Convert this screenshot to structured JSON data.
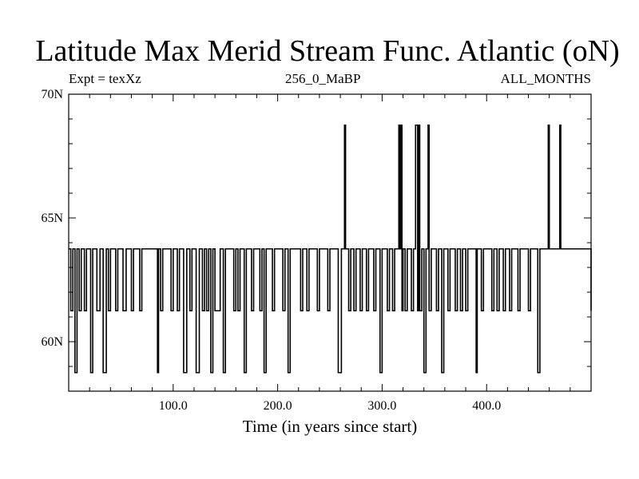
{
  "header": {
    "title": "Latitude Max Merid Stream Func. Atlantic (oN)",
    "left_label": "Expt = texXz",
    "center_label": "256_0_MaBP",
    "right_label": "ALL_MONTHS"
  },
  "chart_data": {
    "type": "line",
    "title": "Latitude Max Merid Stream Func. Atlantic (oN)",
    "xlabel": "Time (in years since start)",
    "ylabel": "",
    "xlim": [
      0,
      500
    ],
    "ylim": [
      58,
      70
    ],
    "x_ticks": [
      {
        "value": 100,
        "label": "100.0"
      },
      {
        "value": 200,
        "label": "200.0"
      },
      {
        "value": 300,
        "label": "300.0"
      },
      {
        "value": 400,
        "label": "400.0"
      }
    ],
    "y_ticks": [
      {
        "value": 60,
        "label": "60N"
      },
      {
        "value": 65,
        "label": "65N"
      },
      {
        "value": 70,
        "label": "70N"
      }
    ],
    "grid": false,
    "baseline": 63.75,
    "levels": [
      58.75,
      61.25,
      63.75,
      68.75
    ],
    "series": [
      {
        "name": "latitude",
        "color": "#000000",
        "events": [
          [
            2,
            61.25
          ],
          [
            4,
            63.75
          ],
          [
            6,
            58.75
          ],
          [
            8,
            63.75
          ],
          [
            10,
            61.25
          ],
          [
            12,
            63.75
          ],
          [
            15,
            61.25
          ],
          [
            17,
            63.75
          ],
          [
            21,
            58.75
          ],
          [
            23,
            63.75
          ],
          [
            27,
            61.25
          ],
          [
            30,
            63.75
          ],
          [
            33,
            58.75
          ],
          [
            36,
            63.75
          ],
          [
            38,
            61.25
          ],
          [
            40,
            63.75
          ],
          [
            45,
            61.25
          ],
          [
            47,
            63.75
          ],
          [
            52,
            61.25
          ],
          [
            55,
            63.75
          ],
          [
            60,
            61.25
          ],
          [
            62,
            63.75
          ],
          [
            68,
            61.25
          ],
          [
            70,
            63.75
          ],
          [
            85,
            58.75
          ],
          [
            86,
            63.75
          ],
          [
            88,
            61.25
          ],
          [
            90,
            63.75
          ],
          [
            98,
            61.25
          ],
          [
            100,
            63.75
          ],
          [
            104,
            61.25
          ],
          [
            106,
            63.75
          ],
          [
            110,
            58.75
          ],
          [
            113,
            63.75
          ],
          [
            116,
            61.25
          ],
          [
            118,
            63.75
          ],
          [
            122,
            58.75
          ],
          [
            125,
            63.75
          ],
          [
            128,
            61.25
          ],
          [
            130,
            63.75
          ],
          [
            132,
            61.25
          ],
          [
            134,
            63.75
          ],
          [
            136,
            58.75
          ],
          [
            138,
            63.75
          ],
          [
            140,
            61.25
          ],
          [
            145,
            63.75
          ],
          [
            148,
            58.75
          ],
          [
            150,
            63.75
          ],
          [
            158,
            61.25
          ],
          [
            160,
            63.75
          ],
          [
            162,
            61.25
          ],
          [
            164,
            63.75
          ],
          [
            168,
            58.75
          ],
          [
            170,
            63.75
          ],
          [
            175,
            61.25
          ],
          [
            177,
            63.75
          ],
          [
            183,
            61.25
          ],
          [
            185,
            63.75
          ],
          [
            187,
            58.75
          ],
          [
            189,
            63.75
          ],
          [
            195,
            61.25
          ],
          [
            197,
            63.75
          ],
          [
            205,
            61.25
          ],
          [
            207,
            63.75
          ],
          [
            210,
            58.75
          ],
          [
            212,
            63.75
          ],
          [
            222,
            61.25
          ],
          [
            224,
            63.75
          ],
          [
            228,
            61.25
          ],
          [
            230,
            63.75
          ],
          [
            238,
            61.25
          ],
          [
            240,
            63.75
          ],
          [
            248,
            61.25
          ],
          [
            250,
            63.75
          ],
          [
            258,
            58.75
          ],
          [
            261,
            63.75
          ],
          [
            264,
            68.75
          ],
          [
            265,
            63.75
          ],
          [
            268,
            61.25
          ],
          [
            270,
            63.75
          ],
          [
            273,
            61.25
          ],
          [
            275,
            63.75
          ],
          [
            279,
            61.25
          ],
          [
            281,
            63.75
          ],
          [
            285,
            61.25
          ],
          [
            287,
            63.75
          ],
          [
            292,
            61.25
          ],
          [
            294,
            63.75
          ],
          [
            298,
            58.75
          ],
          [
            300,
            63.75
          ],
          [
            305,
            61.25
          ],
          [
            307,
            63.75
          ],
          [
            310,
            61.25
          ],
          [
            312,
            63.75
          ],
          [
            316,
            68.75
          ],
          [
            317,
            63.75
          ],
          [
            318,
            68.75
          ],
          [
            319,
            61.25
          ],
          [
            320,
            63.75
          ],
          [
            322,
            61.25
          ],
          [
            324,
            63.75
          ],
          [
            328,
            61.25
          ],
          [
            330,
            63.75
          ],
          [
            332,
            68.75
          ],
          [
            334,
            61.25
          ],
          [
            335,
            68.75
          ],
          [
            336,
            61.25
          ],
          [
            338,
            63.75
          ],
          [
            340,
            58.75
          ],
          [
            342,
            63.75
          ],
          [
            344,
            68.75
          ],
          [
            345,
            61.25
          ],
          [
            347,
            63.75
          ],
          [
            352,
            61.25
          ],
          [
            354,
            63.75
          ],
          [
            357,
            58.75
          ],
          [
            359,
            63.75
          ],
          [
            363,
            61.25
          ],
          [
            365,
            63.75
          ],
          [
            370,
            61.25
          ],
          [
            372,
            63.75
          ],
          [
            375,
            61.25
          ],
          [
            377,
            63.75
          ],
          [
            380,
            61.25
          ],
          [
            382,
            63.75
          ],
          [
            390,
            58.75
          ],
          [
            391,
            63.75
          ],
          [
            395,
            61.25
          ],
          [
            397,
            63.75
          ],
          [
            405,
            61.25
          ],
          [
            407,
            63.75
          ],
          [
            410,
            61.25
          ],
          [
            412,
            63.75
          ],
          [
            416,
            61.25
          ],
          [
            418,
            63.75
          ],
          [
            422,
            61.25
          ],
          [
            424,
            63.75
          ],
          [
            430,
            61.25
          ],
          [
            432,
            63.75
          ],
          [
            440,
            61.25
          ],
          [
            442,
            63.75
          ],
          [
            449,
            58.75
          ],
          [
            451,
            63.75
          ],
          [
            459,
            68.75
          ],
          [
            460,
            63.75
          ],
          [
            470,
            68.75
          ],
          [
            471,
            63.75
          ],
          [
            500,
            61.25
          ]
        ]
      }
    ]
  }
}
